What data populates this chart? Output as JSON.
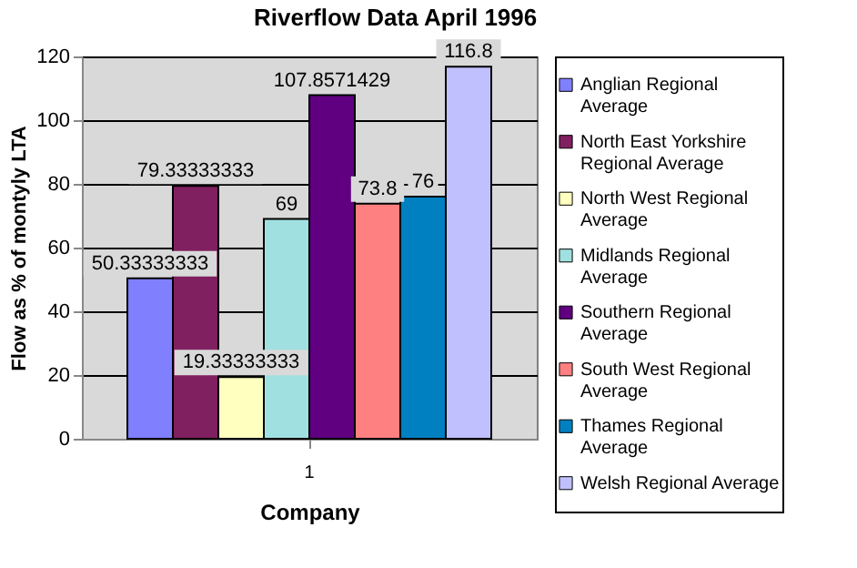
{
  "chart_data": {
    "type": "bar",
    "title": "Riverflow Data April 1996",
    "xlabel": "Company",
    "ylabel": "Flow as % of montyly LTA",
    "categories": [
      "1"
    ],
    "series": [
      {
        "name": "Anglian Regional Average",
        "color": "#8080ff",
        "values": [
          50.33333333
        ]
      },
      {
        "name": "North East Yorkshire Regional Average",
        "color": "#802060",
        "values": [
          79.33333333
        ]
      },
      {
        "name": "North West Regional Average",
        "color": "#ffffc0",
        "values": [
          19.33333333
        ]
      },
      {
        "name": "Midlands Regional Average",
        "color": "#a0e0e0",
        "values": [
          69
        ]
      },
      {
        "name": "Southern Regional Average",
        "color": "#600080",
        "values": [
          107.8571429
        ]
      },
      {
        "name": "South West Regional Average",
        "color": "#ff8080",
        "values": [
          73.8
        ]
      },
      {
        "name": "Thames Regional Average",
        "color": "#0080c0",
        "values": [
          76
        ]
      },
      {
        "name": "Welsh Regional Average",
        "color": "#c0c0ff",
        "values": [
          116.8
        ]
      }
    ],
    "ylim": [
      0,
      120
    ],
    "yticks": [
      0,
      20,
      40,
      60,
      80,
      100,
      120
    ],
    "grid": "y",
    "legend": "right",
    "data_labels": true
  }
}
